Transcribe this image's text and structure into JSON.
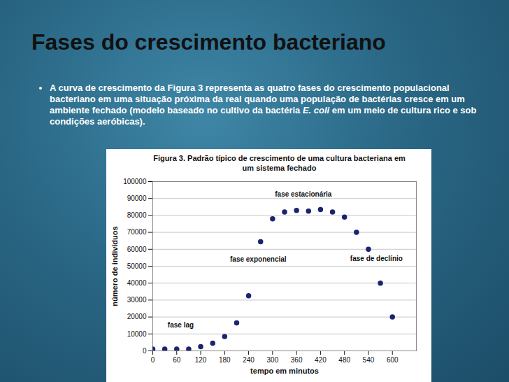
{
  "slide": {
    "title": "Fases do crescimento bacteriano",
    "bullet": [
      {
        "text": "A curva de crescimento da Figura 3 representa as quatro fases do crescimento populacional bacteriano em uma situação próxima da real quando uma população de bactérias cresce em um ambiente fechado (modelo baseado no cultivo da bactéria "
      },
      {
        "text": "E. coli",
        "style": "italic"
      },
      {
        "text": " em um meio de cultura rico e sob condições aeróbicas)."
      }
    ]
  },
  "chart_data": {
    "type": "scatter",
    "title": "Figura 3. Padrão típico de crescimento de uma cultura bacteriana em um sistema fechado",
    "x_label": "tempo em minutos",
    "y_label": "número de indivíduos",
    "x": [
      0,
      30,
      60,
      90,
      120,
      150,
      180,
      210,
      240,
      270,
      300,
      330,
      360,
      390,
      420,
      450,
      480,
      510,
      540,
      570,
      600
    ],
    "values": [
      1000,
      1000,
      1000,
      1000,
      2500,
      4500,
      8500,
      16500,
      32500,
      64500,
      78000,
      82000,
      83000,
      82500,
      83500,
      82000,
      79000,
      70000,
      60000,
      40000,
      20000
    ],
    "color": "#1b2470",
    "marker": "circle",
    "xlim": [
      0,
      660
    ],
    "xticks": [
      0,
      60,
      120,
      180,
      240,
      300,
      360,
      420,
      480,
      540,
      600
    ],
    "ylim": [
      0,
      100000
    ],
    "yticks": [
      0,
      10000,
      20000,
      30000,
      40000,
      50000,
      60000,
      70000,
      80000,
      90000,
      100000
    ],
    "grid": true,
    "annotations": [
      {
        "text": "fase lag",
        "x": 70,
        "y": 15000
      },
      {
        "text": "fase exponencial",
        "x": 264,
        "y": 54000
      },
      {
        "text": "fase estacionária",
        "x": 377,
        "y": 92500
      },
      {
        "text": "fase de declínio",
        "x": 560,
        "y": 54500
      }
    ]
  }
}
